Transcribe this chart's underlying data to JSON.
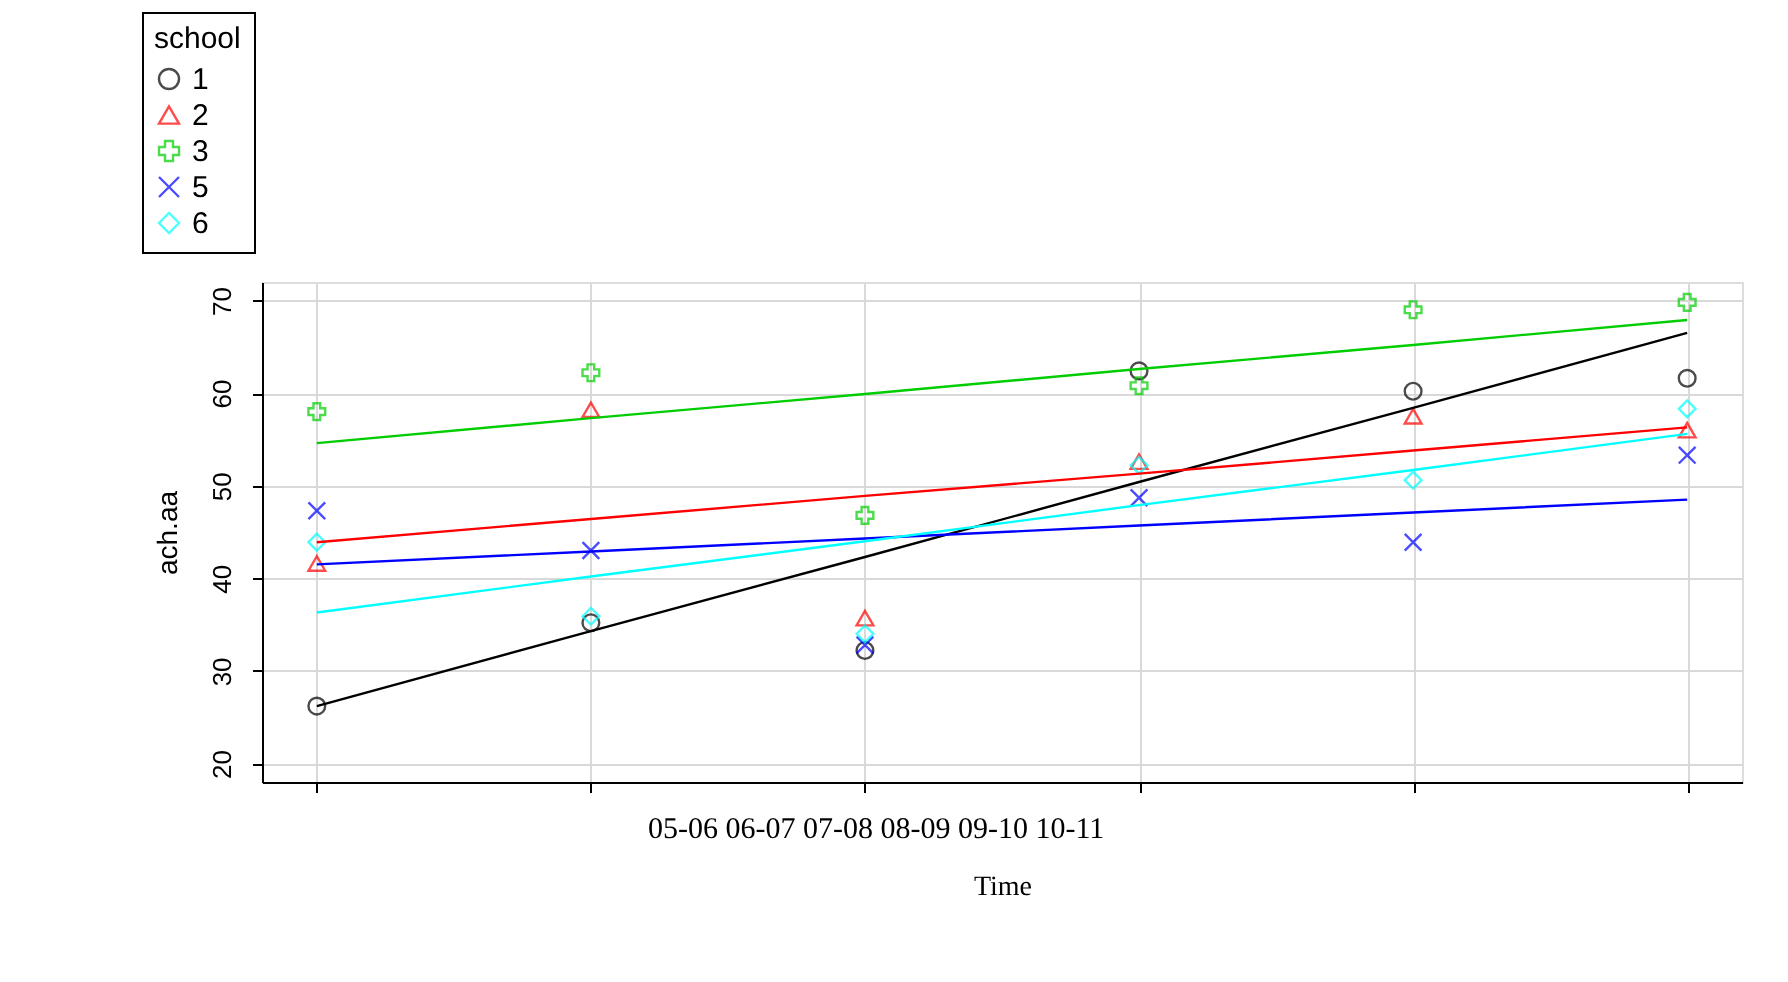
{
  "chart_data": {
    "type": "scatter",
    "xlabel": "Time",
    "ylabel": "ach.aa",
    "legend_title": "school",
    "categories": [
      null,
      null,
      null,
      null,
      null,
      null
    ],
    "series": [
      {
        "name": "1",
        "marker": "circle",
        "color": "#000000",
        "values": [
          26.2,
          35.2,
          32.2,
          62.4,
          60.2,
          61.6
        ]
      },
      {
        "name": "2",
        "marker": "triangle",
        "color": "#ff0000",
        "values": [
          41.6,
          58.2,
          35.7,
          52.6,
          57.5,
          56.0
        ]
      },
      {
        "name": "3",
        "marker": "cross",
        "color": "#00cd00",
        "values": [
          58.0,
          62.2,
          46.8,
          60.8,
          69.0,
          69.8
        ]
      },
      {
        "name": "5",
        "marker": "x",
        "color": "#0000ff",
        "values": [
          47.3,
          43.0,
          32.8,
          48.7,
          43.9,
          53.3
        ]
      },
      {
        "name": "6",
        "marker": "diamond",
        "color": "#00ffff",
        "values": [
          43.9,
          35.9,
          34.0,
          52.2,
          50.6,
          58.3
        ]
      },
      {
        "type": "line",
        "color": "#000000",
        "values": [
          26.2,
          34.3,
          42.3,
          50.4,
          58.4,
          66.5
        ]
      },
      {
        "type": "line",
        "color": "#ff0000",
        "values": [
          43.9,
          46.4,
          48.9,
          51.3,
          53.8,
          56.3
        ]
      },
      {
        "type": "line",
        "color": "#00cd00",
        "values": [
          54.6,
          57.3,
          59.9,
          62.6,
          65.2,
          67.9
        ]
      },
      {
        "type": "line",
        "color": "#0000ff",
        "values": [
          41.5,
          42.9,
          44.3,
          45.7,
          47.1,
          48.5
        ]
      },
      {
        "type": "line",
        "color": "#00ffff",
        "values": [
          36.3,
          40.2,
          44.0,
          47.9,
          51.7,
          55.6
        ]
      }
    ],
    "ylim": [
      18,
      72
    ],
    "yticks": [
      20,
      30,
      40,
      50,
      60,
      70
    ],
    "annotations": [
      "05-06   06-07  07-08  08-09  09-10  10-11"
    ],
    "grid": true,
    "legend": "top left",
    "line_style": "solid"
  }
}
